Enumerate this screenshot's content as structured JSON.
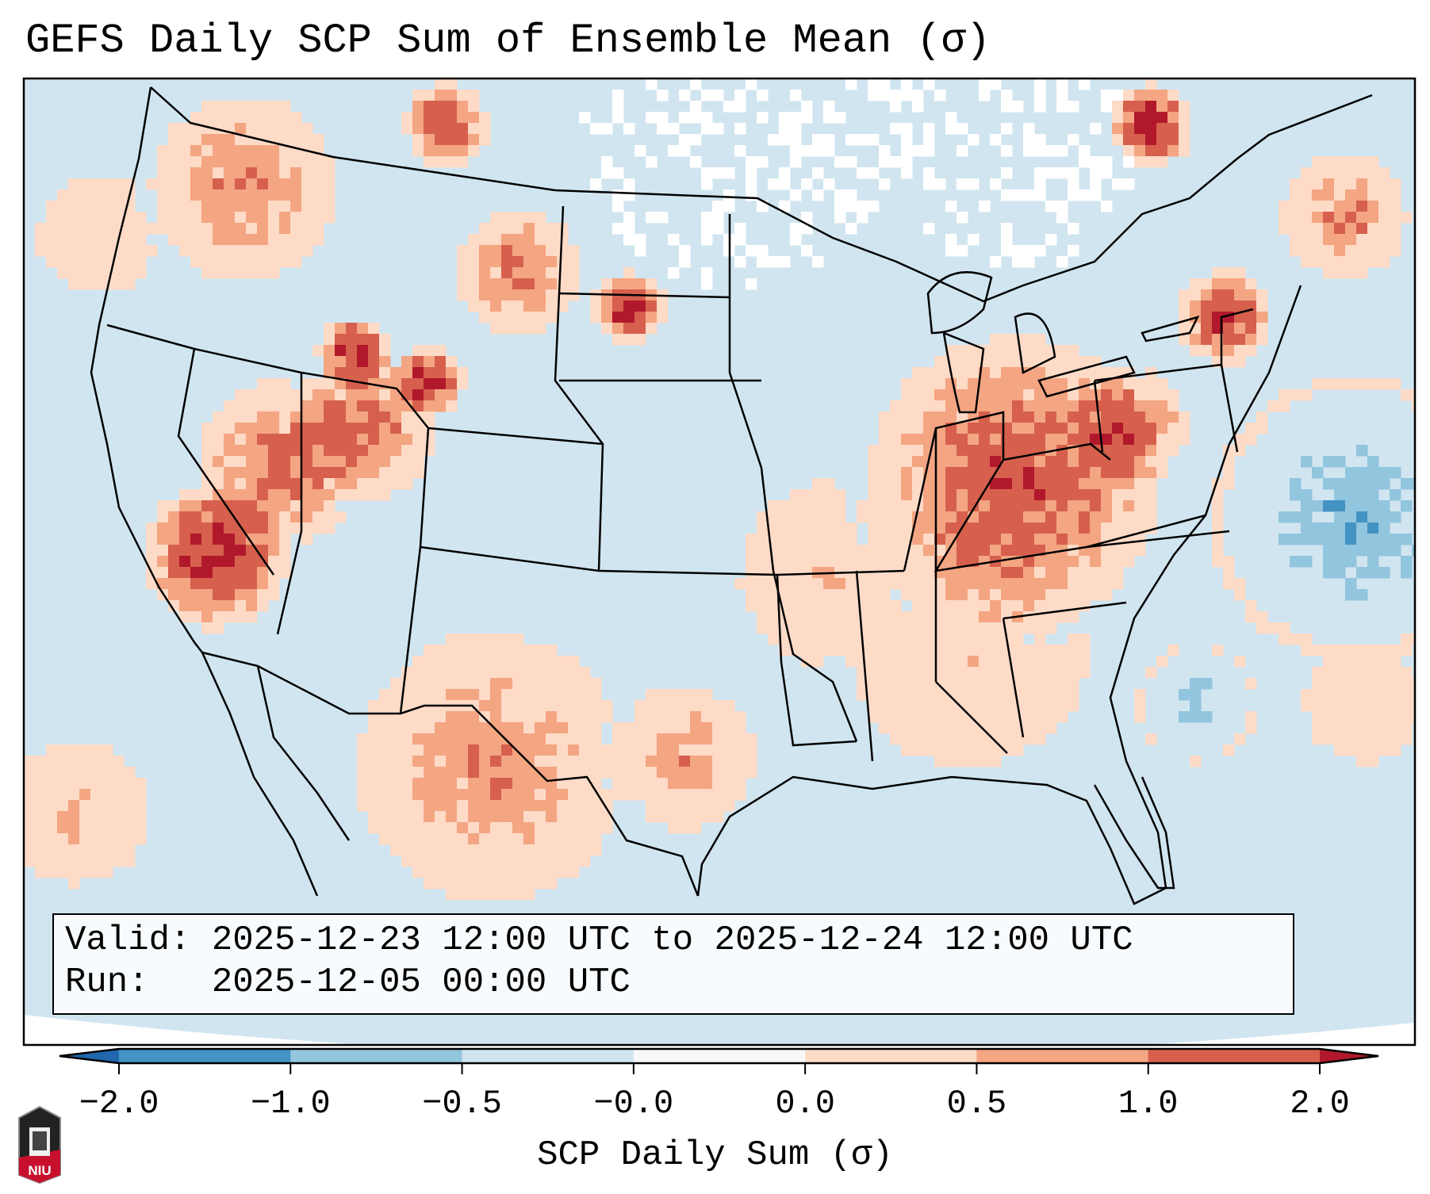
{
  "title": "GEFS Daily SCP Sum of Ensemble Mean (σ)",
  "info": {
    "valid_label": "Valid:",
    "valid_value": "2025-12-23 12:00 UTC to 2025-12-24 12:00 UTC",
    "run_label": "Run:",
    "run_value": "2025-12-05 00:00 UTC"
  },
  "colorbar": {
    "label": "SCP Daily Sum (σ)",
    "ticks": [
      "−2.0",
      "−1.0",
      "−0.5",
      "−0.0",
      "0.0",
      "0.5",
      "1.0",
      "2.0"
    ],
    "colors": {
      "under": "#2166ac",
      "b_m2_m1": "#4393c3",
      "b_m1_m05": "#92c5de",
      "b_m05_0": "#d1e5f0",
      "b_0_0": "#f7f7f7",
      "b_0_05": "#fddbc7",
      "b_05_1": "#f4a582",
      "b_1_2": "#d6604d",
      "over": "#b2182b"
    }
  },
  "logo": {
    "text": "NIU"
  }
}
